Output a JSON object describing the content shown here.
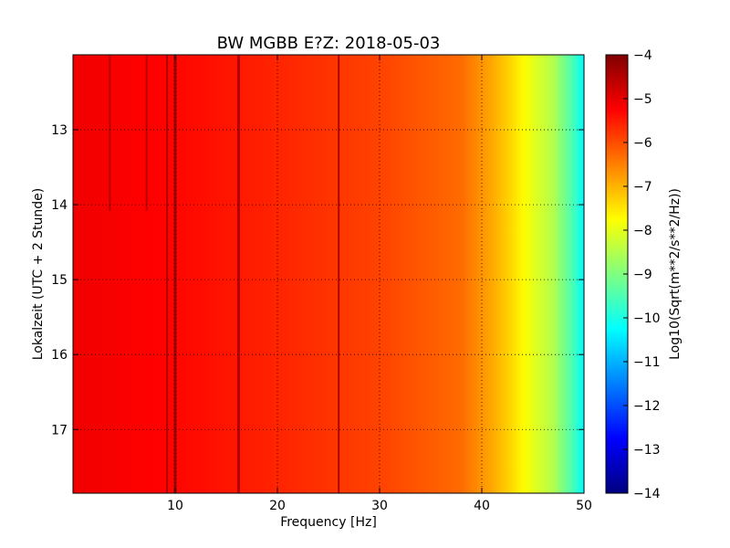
{
  "chart_data": {
    "type": "heatmap",
    "title": "BW MGBB E?Z: 2018-05-03",
    "xlabel": "Frequency [Hz]",
    "ylabel": "Lokalzeit (UTC + 2 Stunde)",
    "xlim": [
      0,
      50
    ],
    "ylim": [
      17.85,
      12.0
    ],
    "y_inverted": true,
    "x_ticks": [
      10,
      20,
      30,
      40,
      50
    ],
    "y_ticks": [
      13,
      14,
      15,
      16,
      17
    ],
    "grid": true,
    "colormap": "jet",
    "colorbar": {
      "label": "Log10(Sqrt(m**2/s**2/Hz))",
      "min": -14,
      "max": -4,
      "ticks": [
        -4,
        -5,
        -6,
        -7,
        -8,
        -9,
        -10,
        -11,
        -12,
        -13,
        -14
      ]
    },
    "baseline": [
      {
        "freq": 0,
        "value": -5.1
      },
      {
        "freq": 10,
        "value": -5.3
      },
      {
        "freq": 20,
        "value": -5.6
      },
      {
        "freq": 30,
        "value": -5.9
      },
      {
        "freq": 38,
        "value": -6.3
      },
      {
        "freq": 41,
        "value": -6.9
      },
      {
        "freq": 43,
        "value": -7.4
      },
      {
        "freq": 45,
        "value": -8.0
      },
      {
        "freq": 47,
        "value": -8.5
      },
      {
        "freq": 49,
        "value": -9.6
      },
      {
        "freq": 50,
        "value": -10.3
      }
    ],
    "vertical_lines": [
      {
        "freq": 3.6,
        "value": -4.5,
        "t_end": 14.08
      },
      {
        "freq": 7.2,
        "value": -4.5,
        "t_end": 14.08
      },
      {
        "freq": 9.2,
        "value": -4.4
      },
      {
        "freq": 10.0,
        "value": -4.2
      },
      {
        "freq": 16.2,
        "value": -4.4
      },
      {
        "freq": 26.0,
        "value": -4.3
      }
    ]
  }
}
